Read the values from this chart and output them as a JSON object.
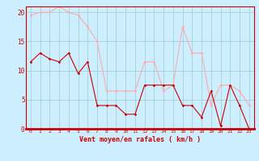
{
  "hours": [
    0,
    1,
    2,
    3,
    4,
    5,
    6,
    7,
    8,
    9,
    10,
    11,
    12,
    13,
    14,
    15,
    16,
    17,
    18,
    19,
    20,
    21,
    22,
    23
  ],
  "vent_moyen": [
    11.5,
    13,
    12,
    11.5,
    13,
    9.5,
    11.5,
    4,
    4,
    4,
    2.5,
    2.5,
    7.5,
    7.5,
    7.5,
    7.5,
    4,
    4,
    2,
    6.5,
    0.5,
    7.5,
    4,
    0
  ],
  "rafales": [
    19.5,
    20,
    20,
    21,
    20,
    19.5,
    17.5,
    15,
    6.5,
    6.5,
    6.5,
    6.5,
    11.5,
    11.5,
    6.5,
    7.5,
    17.5,
    13,
    13,
    4,
    7.5,
    7.5,
    6.5,
    4
  ],
  "color_moyen": "#cc0000",
  "color_rafales": "#ffaaaa",
  "bg_color": "#cceeff",
  "grid_color": "#99cccc",
  "xlabel": "Vent moyen/en rafales ( km/h )",
  "xlabel_color": "#cc0000",
  "tick_color": "#cc0000",
  "ylim": [
    0,
    21
  ],
  "yticks": [
    0,
    5,
    10,
    15,
    20
  ],
  "spine_color": "#cc0000"
}
